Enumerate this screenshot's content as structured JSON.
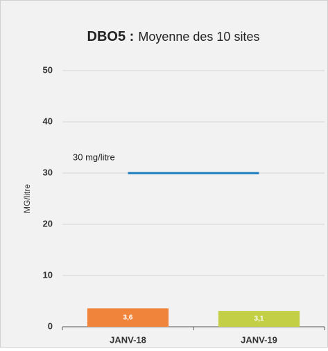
{
  "chart_data": {
    "type": "bar",
    "title_parts": [
      "DBO5 :",
      "Moyenne des 10 sites"
    ],
    "ylabel": "MG/litre",
    "categories": [
      "JANV-18",
      "JANV-19"
    ],
    "values": [
      3.6,
      3.1
    ],
    "value_labels": [
      "3,6",
      "3,1"
    ],
    "colors": [
      "#f0843a",
      "#c3cf45"
    ],
    "ylim": [
      0,
      50
    ],
    "yticks": [
      0,
      10,
      20,
      30,
      40,
      50
    ],
    "grid": true,
    "reference_line": {
      "value": 30,
      "label": "30 mg/litre",
      "color": "#1a7dc0"
    }
  }
}
